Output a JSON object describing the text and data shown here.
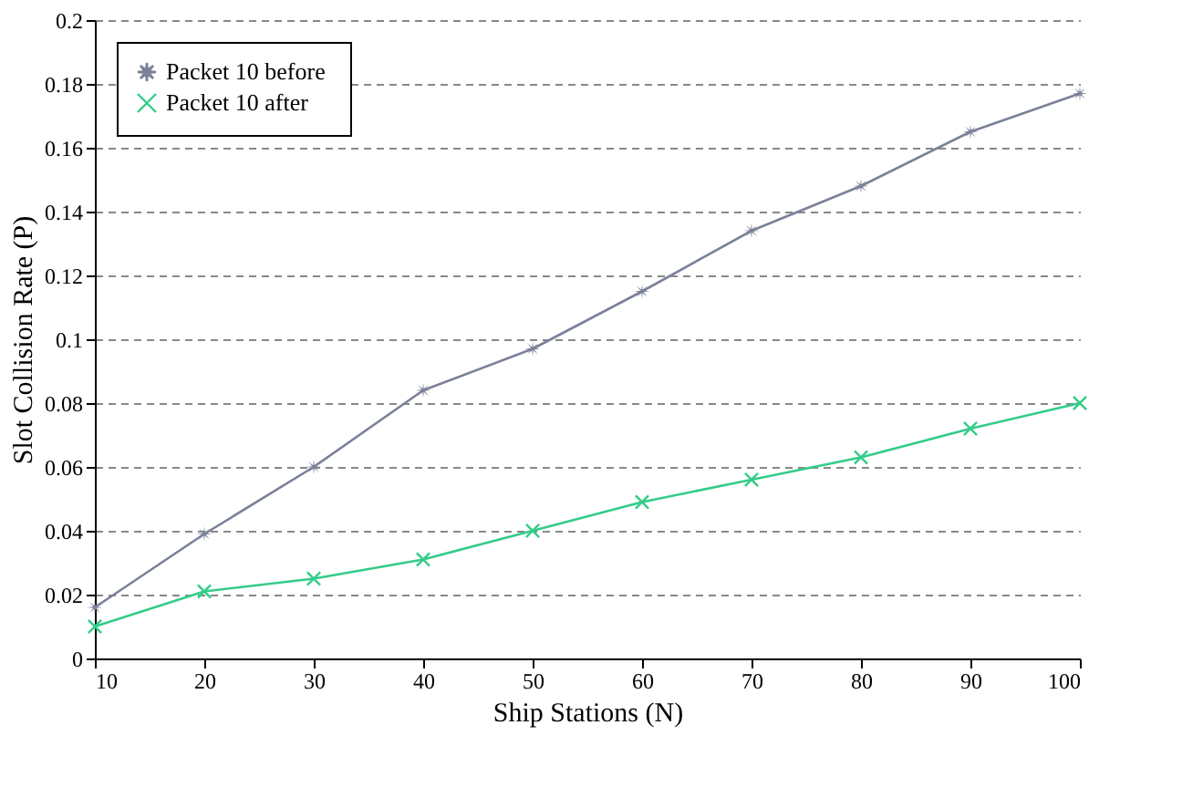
{
  "chart_data": {
    "type": "line",
    "xlabel": "Ship Stations (N)",
    "ylabel": "Slot Collision Rate (P)",
    "x": [
      10,
      20,
      30,
      40,
      50,
      60,
      70,
      80,
      90,
      100
    ],
    "series": [
      {
        "name": "Packet 10  before",
        "color": "#7a8198",
        "marker": "star",
        "values": [
          0.016,
          0.039,
          0.06,
          0.084,
          0.097,
          0.115,
          0.134,
          0.148,
          0.165,
          0.177
        ]
      },
      {
        "name": "Packet 10  after",
        "color": "#33cc88",
        "marker": "cross",
        "values": [
          0.01,
          0.021,
          0.025,
          0.031,
          0.04,
          0.049,
          0.056,
          0.063,
          0.072,
          0.08
        ]
      }
    ],
    "xlim": [
      10,
      100
    ],
    "xticks": [
      10,
      20,
      30,
      40,
      50,
      60,
      70,
      80,
      90,
      100
    ],
    "ylim": [
      0,
      0.2
    ],
    "yticks": [
      0,
      0.02,
      0.04,
      0.06,
      0.08,
      0.1,
      0.12,
      0.14,
      0.16,
      0.18,
      0.2
    ],
    "grid": "y",
    "legend": "top left",
    "line_style": "solid"
  }
}
